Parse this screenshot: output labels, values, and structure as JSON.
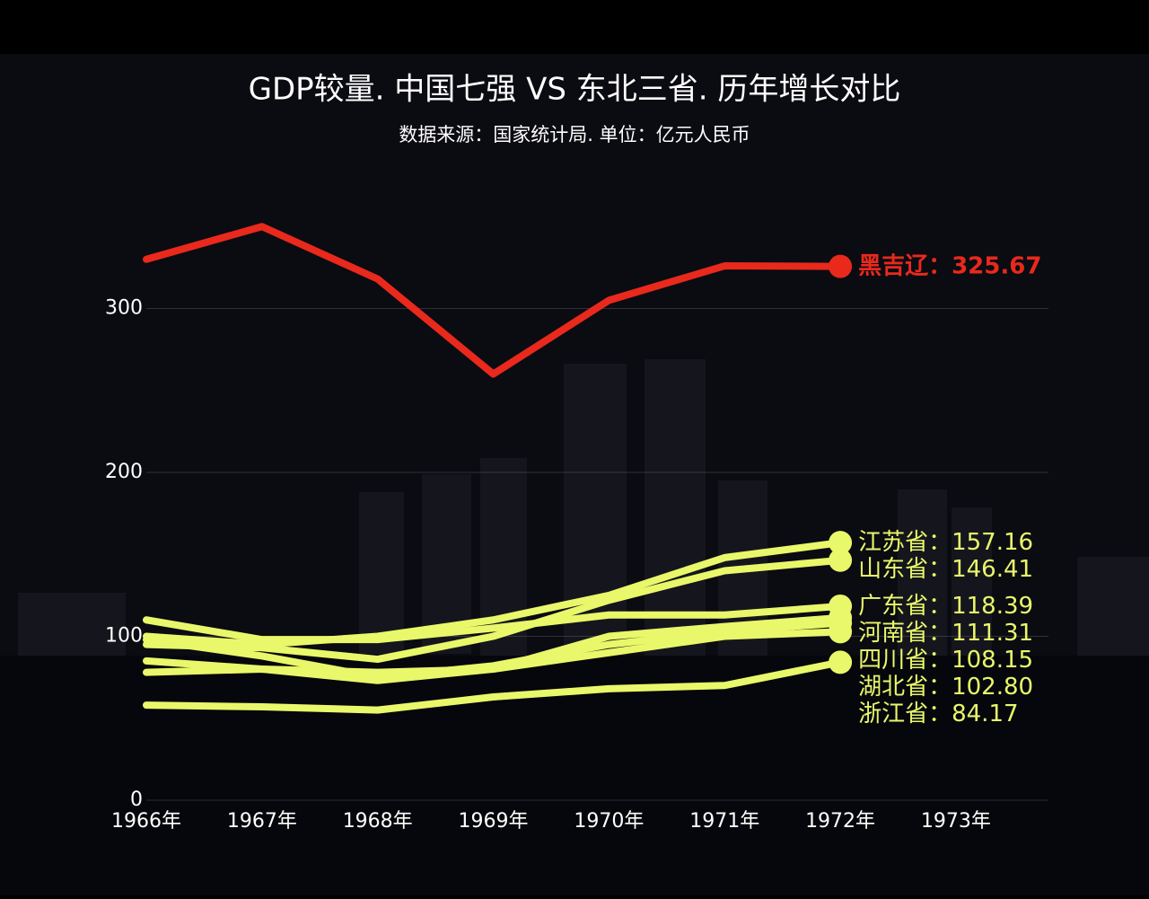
{
  "chart_data": {
    "type": "line",
    "title": "GDP较量. 中国七强 VS 东北三省. 历年增长对比",
    "subtitle": "数据来源：国家统计局. 单位：亿元人民币",
    "label_separator": "：",
    "x": [
      1966,
      1967,
      1968,
      1969,
      1970,
      1971,
      1972
    ],
    "xlim": [
      1966,
      1973.8
    ],
    "xticks": [
      {
        "value": 1966,
        "label": "1966年"
      },
      {
        "value": 1967,
        "label": "1967年"
      },
      {
        "value": 1968,
        "label": "1968年"
      },
      {
        "value": 1969,
        "label": "1969年"
      },
      {
        "value": 1970,
        "label": "1970年"
      },
      {
        "value": 1971,
        "label": "1971年"
      },
      {
        "value": 1972,
        "label": "1972年"
      },
      {
        "value": 1973,
        "label": "1973年"
      }
    ],
    "ylim": [
      0,
      400
    ],
    "yticks": [
      0,
      100,
      200,
      300
    ],
    "grid": true,
    "series": [
      {
        "name": "黑吉辽",
        "color": "#e8291c",
        "values": [
          330,
          350,
          318,
          260,
          305,
          326,
          325.67
        ],
        "value_labels": [
          null,
          null,
          null,
          null,
          null,
          null,
          "325.67"
        ]
      },
      {
        "name": "江苏省",
        "color": "#e9f76a",
        "values": [
          100,
          95,
          100,
          110,
          125,
          148,
          157.16
        ],
        "value_labels": [
          null,
          null,
          null,
          null,
          null,
          null,
          "157.16"
        ]
      },
      {
        "name": "山东省",
        "color": "#e9f76a",
        "values": [
          95,
          93,
          86,
          100,
          122,
          140,
          146.41
        ],
        "value_labels": [
          null,
          null,
          null,
          null,
          null,
          null,
          "146.41"
        ]
      },
      {
        "name": "广东省",
        "color": "#e9f76a",
        "values": [
          110,
          98,
          98,
          105,
          113,
          113,
          118.39
        ],
        "value_labels": [
          null,
          null,
          null,
          null,
          null,
          null,
          "118.39"
        ]
      },
      {
        "name": "河南省",
        "color": "#e9f76a",
        "values": [
          85,
          80,
          73,
          80,
          100,
          106,
          111.31
        ],
        "value_labels": [
          null,
          null,
          null,
          null,
          null,
          null,
          "111.31"
        ]
      },
      {
        "name": "四川省",
        "color": "#e9f76a",
        "values": [
          98,
          88,
          75,
          82,
          95,
          103,
          108.15
        ],
        "value_labels": [
          null,
          null,
          null,
          null,
          null,
          null,
          "108.15"
        ]
      },
      {
        "name": "湖北省",
        "color": "#e9f76a",
        "values": [
          78,
          80,
          78,
          80,
          90,
          100,
          102.8
        ],
        "value_labels": [
          null,
          null,
          null,
          null,
          null,
          null,
          "102.80"
        ]
      },
      {
        "name": "浙江省",
        "color": "#e9f76a",
        "values": [
          58,
          57,
          55,
          63,
          68,
          70,
          84.17
        ],
        "value_labels": [
          null,
          null,
          null,
          null,
          null,
          null,
          "84.17"
        ]
      }
    ]
  }
}
